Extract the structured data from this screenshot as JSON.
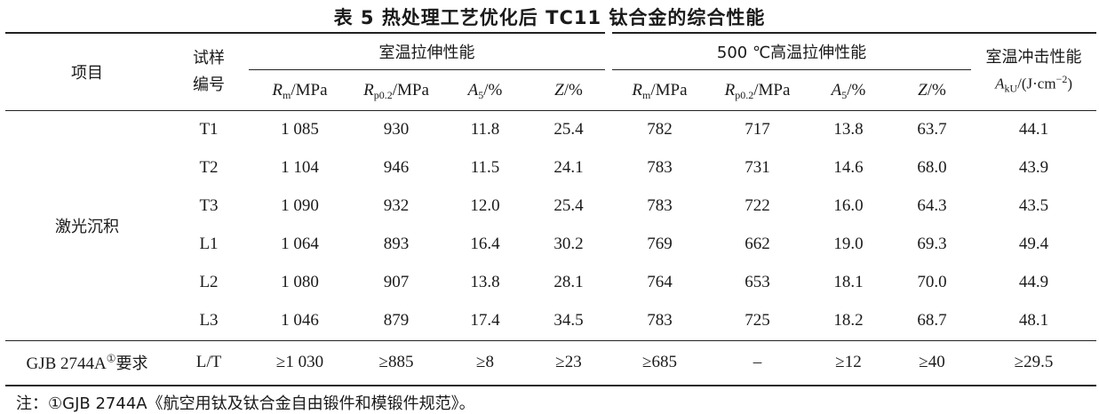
{
  "title": "表 5   热处理工艺优化后 TC11 钛合金的综合性能",
  "header": {
    "item": "项目",
    "sample": "试样\n编号",
    "room_tensile": "室温拉伸性能",
    "high_tensile": "500 ℃高温拉伸性能",
    "impact": "室温冲击性能",
    "cols": [
      {
        "sym": "R",
        "sub": "m",
        "unit": "/MPa"
      },
      {
        "sym": "R",
        "sub": "p0.2",
        "unit": "/MPa"
      },
      {
        "sym": "A",
        "sub": "5",
        "unit": "/%"
      },
      {
        "sym": "Z",
        "sub": "",
        "unit": "/%"
      },
      {
        "sym": "R",
        "sub": "m",
        "unit": "/MPa"
      },
      {
        "sym": "R",
        "sub": "p0.2",
        "unit": "/MPa"
      },
      {
        "sym": "A",
        "sub": "5",
        "unit": "/%"
      },
      {
        "sym": "Z",
        "sub": "",
        "unit": "/%"
      }
    ],
    "impact_col": {
      "sym": "A",
      "sub": "kU",
      "unit": "/(J·cm",
      "exp": "−2",
      "close": ")"
    }
  },
  "group_label": "激光沉积",
  "rows": [
    {
      "id": "T1",
      "values": [
        "1 085",
        "930",
        "11.8",
        "25.4",
        "782",
        "717",
        "13.8",
        "63.7",
        "44.1"
      ]
    },
    {
      "id": "T2",
      "values": [
        "1 104",
        "946",
        "11.5",
        "24.1",
        "783",
        "731",
        "14.6",
        "68.0",
        "43.9"
      ]
    },
    {
      "id": "T3",
      "values": [
        "1 090",
        "932",
        "12.0",
        "25.4",
        "783",
        "722",
        "16.0",
        "64.3",
        "43.5"
      ]
    },
    {
      "id": "L1",
      "values": [
        "1 064",
        "893",
        "16.4",
        "30.2",
        "769",
        "662",
        "19.0",
        "69.3",
        "49.4"
      ]
    },
    {
      "id": "L2",
      "values": [
        "1 080",
        "907",
        "13.8",
        "28.1",
        "764",
        "653",
        "18.1",
        "70.0",
        "44.9"
      ]
    },
    {
      "id": "L3",
      "values": [
        "1 046",
        "879",
        "17.4",
        "34.5",
        "783",
        "725",
        "18.2",
        "68.7",
        "48.1"
      ]
    }
  ],
  "requirement": {
    "label": "GJB 2744A",
    "mark": "①",
    "suffix": "要求",
    "id": "L/T",
    "values": [
      "≥1 030",
      "≥885",
      "≥8",
      "≥23",
      "≥685",
      "–",
      "≥12",
      "≥40",
      "≥29.5"
    ]
  },
  "note": "注：①GJB 2744A《航空用钛及钛合金自由锻件和模锻件规范》。"
}
